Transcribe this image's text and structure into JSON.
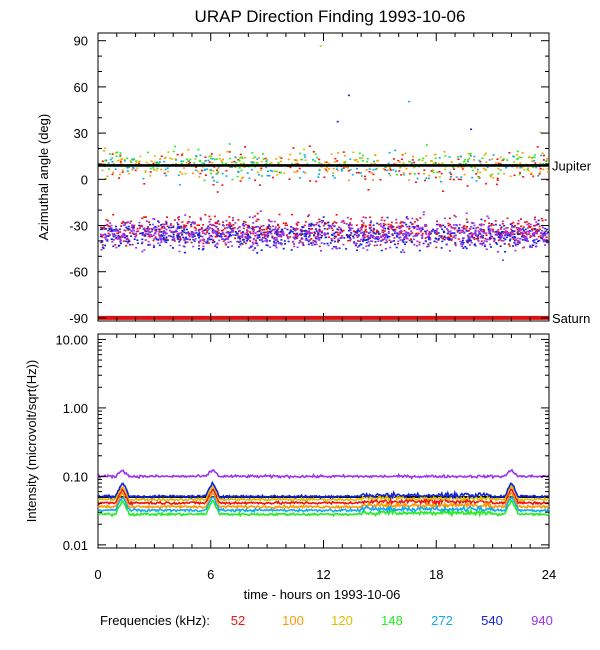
{
  "chart_data": [
    {
      "type": "scatter",
      "title": "URAP Direction Finding  1993-10-06",
      "ylabel": "Azimuthal angle (deg)",
      "xlim": [
        0,
        24
      ],
      "ylim": [
        -92,
        95
      ],
      "yticks": [
        "90",
        "60",
        "30",
        "0",
        "-30",
        "-60",
        "-90"
      ],
      "grid": false,
      "reference_lines": [
        {
          "label": "Jupiter",
          "y": 9,
          "color": "#000000"
        },
        {
          "label": "Saturn",
          "y": -90,
          "color": "#dd1111"
        }
      ],
      "series": [
        {
          "freq": "52",
          "color": "#ee1111",
          "clusters": [
            [
              7,
              9
            ],
            [
              -33,
              6
            ]
          ],
          "points": [
            [
              6,
              17
            ],
            [
              21.5,
              13
            ]
          ]
        },
        {
          "freq": "100",
          "color": "#ff9900",
          "clusters": [
            [
              10,
              7
            ]
          ],
          "points": [
            [
              15.5,
              3
            ],
            [
              16.5,
              0
            ]
          ]
        },
        {
          "freq": "120",
          "color": "#ddbb00",
          "clusters": [
            [
              11,
              6
            ]
          ],
          "points": [
            [
              11.8,
              87
            ],
            [
              23.5,
              31
            ]
          ]
        },
        {
          "freq": "148",
          "color": "#22ee22",
          "clusters": [
            [
              11,
              6
            ]
          ],
          "points": [
            [
              2.6,
              18
            ],
            [
              18,
              5
            ]
          ]
        },
        {
          "freq": "272",
          "color": "#11aaee",
          "clusters": [
            [
              9,
              6
            ]
          ],
          "points": [
            [
              16.5,
              51
            ],
            [
              4.3,
              -3
            ]
          ]
        },
        {
          "freq": "540",
          "color": "#1122dd",
          "clusters": [
            [
              -36,
              6
            ]
          ],
          "points": [
            [
              13.3,
              55
            ],
            [
              19.8,
              33
            ],
            [
              12.7,
              38
            ]
          ]
        },
        {
          "freq": "940",
          "color": "#9933ee",
          "clusters": [
            [
              -35,
              7
            ]
          ],
          "points": [
            [
              21.5,
              -52
            ]
          ]
        }
      ]
    },
    {
      "type": "line",
      "ylabel": "Intensity (microvolt/sqrt(Hz))",
      "xlabel": "time - hours on 1993-10-06",
      "xticks": [
        "0",
        "6",
        "12",
        "18",
        "24"
      ],
      "xlim": [
        0,
        24
      ],
      "yscale": "log",
      "ylim": [
        0.009,
        12
      ],
      "yticks": [
        "10.00",
        "1.00",
        "0.10",
        "0.01"
      ],
      "reference_level": 0.05,
      "series": [
        {
          "freq": "52",
          "color": "#ee1111",
          "base": 0.041
        },
        {
          "freq": "100",
          "color": "#ff9900",
          "base": 0.036
        },
        {
          "freq": "120",
          "color": "#ddbb00",
          "base": 0.046
        },
        {
          "freq": "148",
          "color": "#22ee22",
          "base": 0.028
        },
        {
          "freq": "272",
          "color": "#11aaee",
          "base": 0.032
        },
        {
          "freq": "540",
          "color": "#1122dd",
          "base": 0.051
        },
        {
          "freq": "940",
          "color": "#9933ee",
          "base": 0.1
        }
      ],
      "spikes_hours": [
        1.3,
        6.1,
        22
      ]
    }
  ],
  "legend": {
    "label": "Frequencies (kHz):",
    "items": [
      {
        "text": "52",
        "color": "#ee1111"
      },
      {
        "text": "100",
        "color": "#ff9900"
      },
      {
        "text": "120",
        "color": "#ddbb00"
      },
      {
        "text": "148",
        "color": "#22ee22"
      },
      {
        "text": "272",
        "color": "#11aaee"
      },
      {
        "text": "540",
        "color": "#1122dd"
      },
      {
        "text": "940",
        "color": "#9933ee"
      }
    ]
  }
}
